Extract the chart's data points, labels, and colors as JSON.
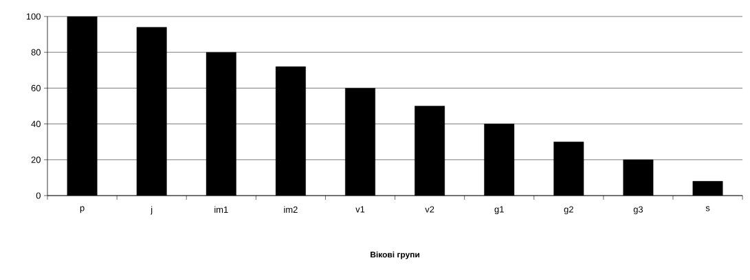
{
  "chart_data": {
    "type": "bar",
    "xlabel": "**Вікові групи**",
    "categories": [
      "p",
      "j",
      "im1",
      "im2",
      "v1",
      "v2",
      "g1",
      "g2",
      "g3",
      "s"
    ],
    "values": [
      100,
      94,
      80,
      72,
      60,
      50,
      40,
      30,
      20,
      8
    ],
    "color": "#000000",
    "ylim": [
      0,
      100
    ],
    "yticks": [
      0,
      20,
      40,
      60,
      80,
      100
    ],
    "grid": "y"
  }
}
